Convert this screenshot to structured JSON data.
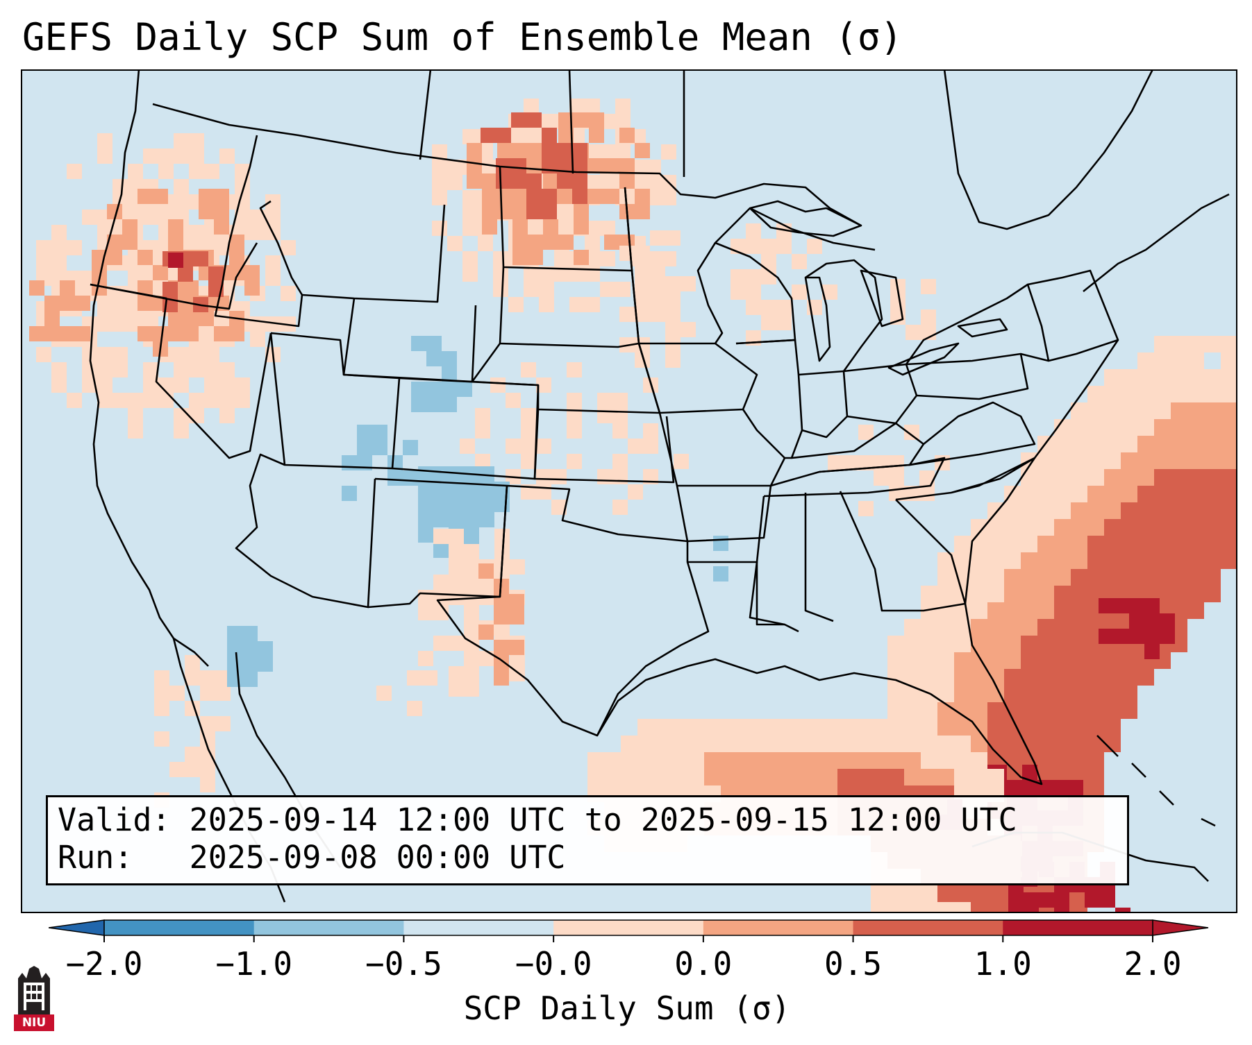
{
  "title": "GEFS Daily SCP Sum of Ensemble Mean (σ)",
  "info": {
    "valid_label": "Valid:",
    "valid_value": "2025-09-14 12:00 UTC to 2025-09-15 12:00 UTC",
    "run_label": "Run:",
    "run_value": "2025-09-08 00:00 UTC"
  },
  "colorbar": {
    "label": "SCP Daily Sum (σ)",
    "ticks": [
      "−2.0",
      "−1.0",
      "−0.5",
      "−0.0",
      "0.0",
      "0.5",
      "1.0",
      "2.0"
    ],
    "colors": [
      "#4393c3",
      "#92c5de",
      "#d1e5f0",
      "#fddbc7",
      "#f4a582",
      "#d6604d",
      "#b2182b"
    ],
    "extend_low_color": "#2166ac",
    "extend_high_color": "#b2182b"
  },
  "logo": {
    "text": "NIU"
  },
  "chart_data": {
    "type": "heatmap",
    "title": "GEFS Daily SCP Sum of Ensemble Mean (σ)",
    "variable": "SCP Daily Sum (σ)",
    "levels": [
      -2.0,
      -1.0,
      -0.5,
      -0.0,
      0.0,
      0.5,
      1.0,
      2.0
    ],
    "region": "Contiguous United States",
    "regions": [
      {
        "name": "Pacific Northwest (Oregon / Washington)",
        "value_range": [
          0.0,
          2.0
        ]
      },
      {
        "name": "North Dakota / Northern Plains",
        "value_range": [
          0.5,
          1.0
        ]
      },
      {
        "name": "Wyoming / Colorado",
        "value_range": [
          -1.0,
          -0.5
        ]
      },
      {
        "name": "Eastern New Mexico / West Texas",
        "value_range": [
          0.0,
          1.0
        ]
      },
      {
        "name": "Gulf of Mexico",
        "value_range": [
          0.0,
          1.0
        ]
      },
      {
        "name": "Florida / Southeast Atlantic",
        "value_range": [
          1.0,
          2.0
        ]
      },
      {
        "name": "Central & Eastern US",
        "value_range": [
          -0.5,
          0.0
        ]
      }
    ]
  }
}
